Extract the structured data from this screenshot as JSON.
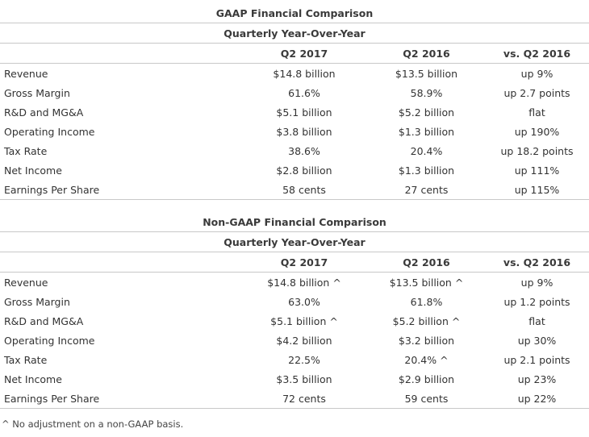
{
  "gaap": {
    "title": "GAAP Financial Comparison",
    "subtitle": "Quarterly Year-Over-Year",
    "columns": [
      "",
      "Q2 2017",
      "Q2 2016",
      "vs. Q2 2016"
    ],
    "rows": [
      [
        "Revenue",
        "$14.8 billion",
        "$13.5 billion",
        "up 9%"
      ],
      [
        "Gross Margin",
        "61.6%",
        "58.9%",
        "up 2.7 points"
      ],
      [
        "R&D and MG&A",
        "$5.1 billion",
        "$5.2 billion",
        "flat"
      ],
      [
        "Operating Income",
        "$3.8 billion",
        "$1.3 billion",
        "up 190%"
      ],
      [
        "Tax Rate",
        "38.6%",
        "20.4%",
        "up 18.2 points"
      ],
      [
        "Net Income",
        "$2.8 billion",
        "$1.3 billion",
        "up 111%"
      ],
      [
        "Earnings Per Share",
        "58 cents",
        "27 cents",
        "up 115%"
      ]
    ]
  },
  "nongaap": {
    "title": "Non-GAAP Financial Comparison",
    "subtitle": "Quarterly Year-Over-Year",
    "columns": [
      "",
      "Q2 2017",
      "Q2 2016",
      "vs. Q2 2016"
    ],
    "rows": [
      [
        "Revenue",
        "$14.8 billion ^",
        "$13.5 billion ^",
        "up 9%"
      ],
      [
        "Gross Margin",
        "63.0%",
        "61.8%",
        "up 1.2 points"
      ],
      [
        "R&D and MG&A",
        "$5.1 billion ^",
        "$5.2 billion ^",
        "flat"
      ],
      [
        "Operating Income",
        "$4.2 billion",
        "$3.2 billion",
        "up 30%"
      ],
      [
        "Tax Rate",
        "22.5%",
        "20.4% ^",
        "up 2.1 points"
      ],
      [
        "Net Income",
        "$3.5 billion",
        "$2.9 billion",
        "up 23%"
      ],
      [
        "Earnings Per Share",
        "72 cents",
        "59 cents",
        "up 22%"
      ]
    ]
  },
  "footnote": "^ No adjustment on a non-GAAP basis."
}
